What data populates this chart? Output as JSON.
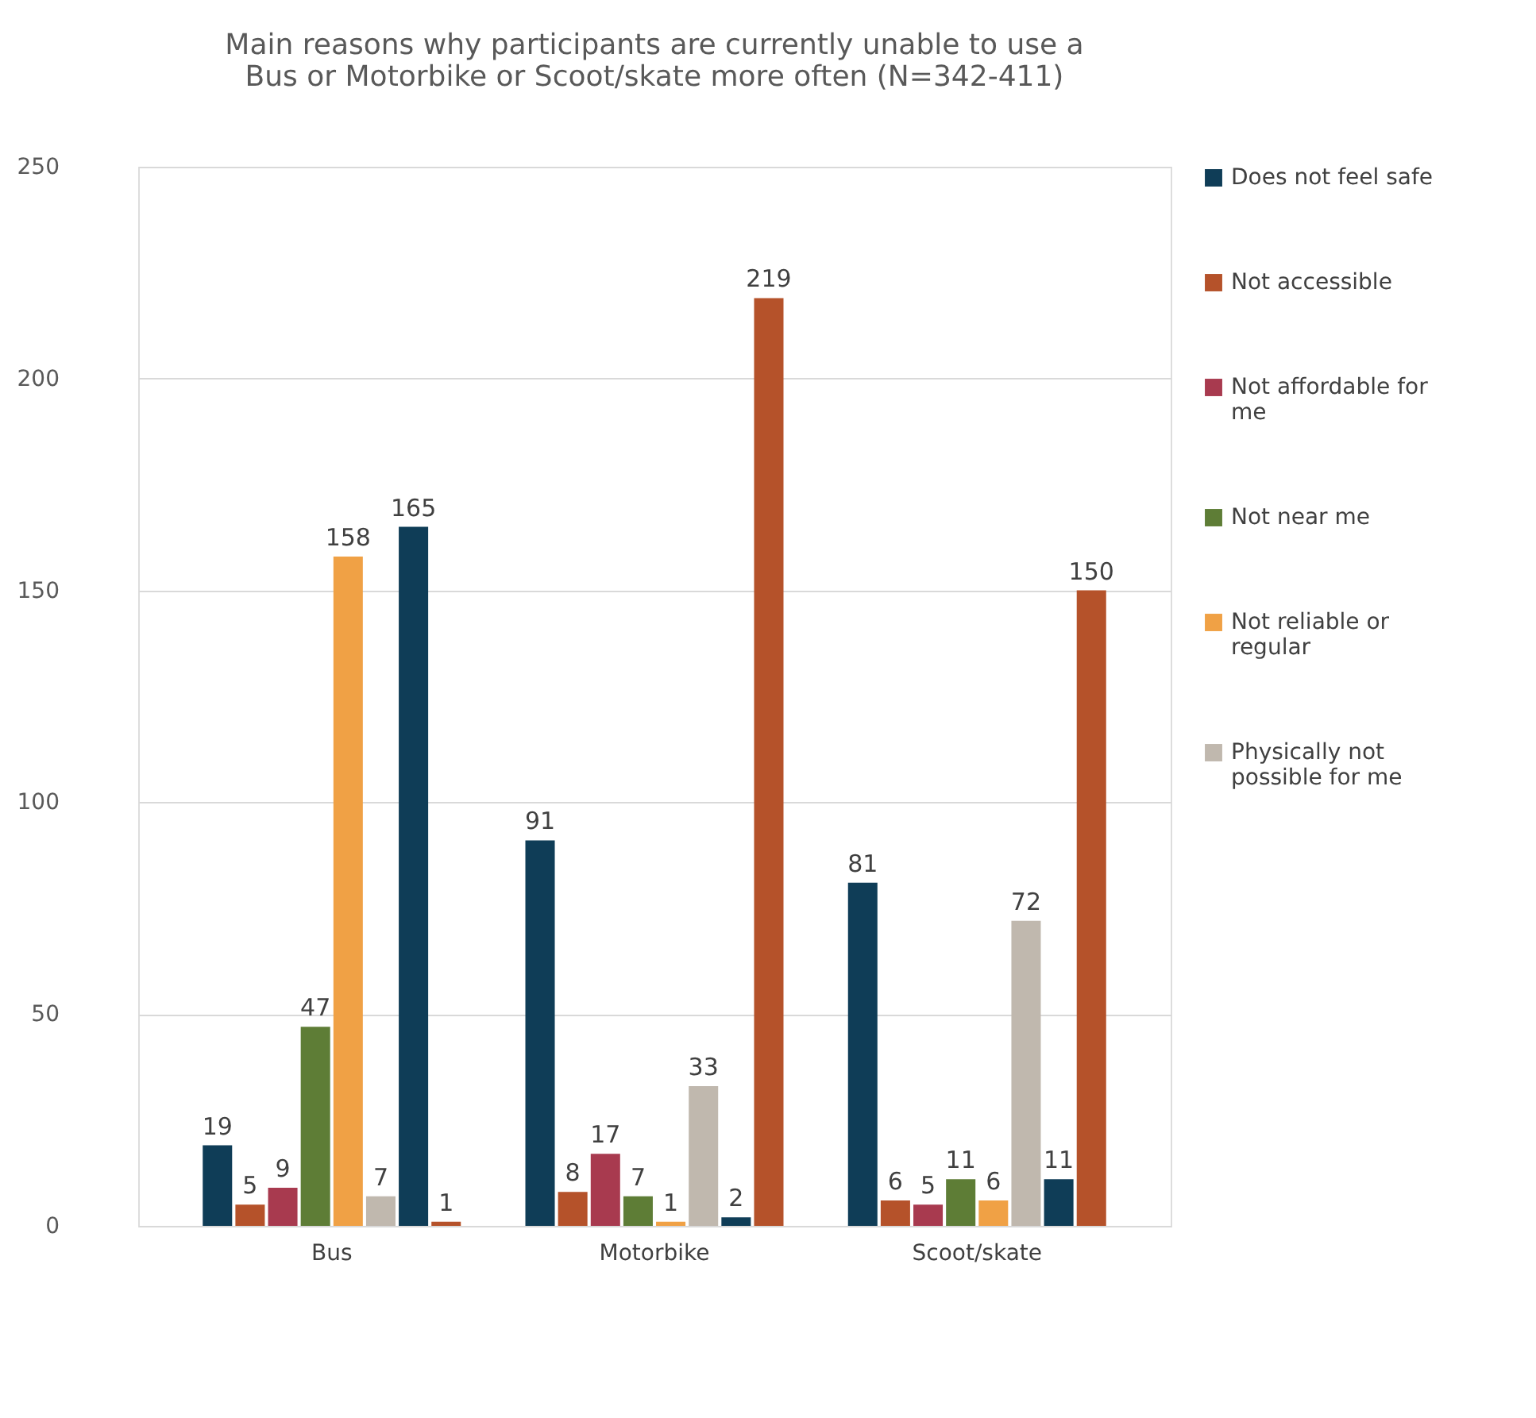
{
  "chart_data": {
    "type": "bar",
    "title": "Main reasons why participants are currently unable to use a Bus or Motorbike or Scoot/skate more often (N=342-411)",
    "categories": [
      "Bus",
      "Motorbike",
      "Scoot/skate"
    ],
    "series": [
      {
        "name": "Does not feel safe",
        "color": "#0f3d57",
        "values": [
          19,
          91,
          81
        ]
      },
      {
        "name": "Not accessible",
        "color": "#b5522a",
        "values": [
          5,
          8,
          6
        ]
      },
      {
        "name": "Not affordable for me",
        "color": "#a83a4f",
        "values": [
          9,
          17,
          5
        ]
      },
      {
        "name": "Not near me",
        "color": "#5e7d36",
        "values": [
          47,
          7,
          11
        ]
      },
      {
        "name": "Not reliable or regular",
        "color": "#f0a145",
        "values": [
          158,
          1,
          6
        ]
      },
      {
        "name": "Physically not possible for me",
        "color": "#c0b8ae",
        "values": [
          7,
          33,
          72
        ]
      },
      {
        "color": "#0f3d57",
        "values": [
          165,
          2,
          11
        ]
      },
      {
        "color": "#b5522a",
        "values": [
          1,
          219,
          150
        ]
      }
    ],
    "ylim": [
      0,
      250
    ],
    "yticks": [
      0,
      50,
      100,
      150,
      200,
      250
    ],
    "grid": "y",
    "legend": "right",
    "data_labels": true
  }
}
